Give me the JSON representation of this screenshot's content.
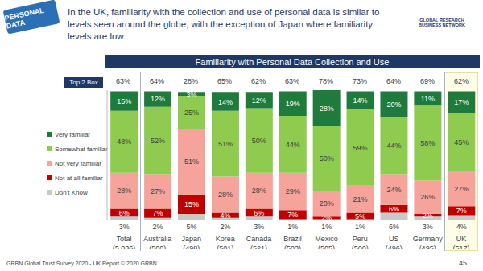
{
  "header": {
    "logo": "PERSONAL DATA",
    "title": "In the UK, familiarity with the collection and use of personal data is similar to levels seen around the globe, with the exception of Japan where familiarity levels are low.",
    "org": "GLOBAL RESEARCH BUSINESS NETWORK"
  },
  "footer": {
    "source": "GRBN Global Trust Survey 2020 - UK Report © 2020 GRBN",
    "page": "45"
  },
  "chart_data": {
    "type": "bar",
    "stacked": true,
    "data_labels": true,
    "tick_labels": "x",
    "legend": "left",
    "title": "Familiarity with Personal Data Collection and Use",
    "categories": [
      "Total",
      "Australia",
      "Japan",
      "Korea",
      "Canada",
      "Brazil",
      "Mexico",
      "Peru",
      "US",
      "Germany",
      "UK"
    ],
    "sample_sizes": [
      "(5,036)",
      "(500)",
      "(498)",
      "(501)",
      "(521)",
      "(503)",
      "(505)",
      "(500)",
      "(496)",
      "(495)",
      "(517)"
    ],
    "top2box": {
      "label": "Top 2 Box",
      "values": [
        63,
        64,
        28,
        65,
        62,
        63,
        78,
        73,
        64,
        69,
        62
      ],
      "value_labels": [
        "63%",
        "64%",
        "28%",
        "65%",
        "62%",
        "63%",
        "78%",
        "73%",
        "64%",
        "69%",
        "62%"
      ]
    },
    "ylim": [
      0,
      101
    ],
    "series": [
      {
        "name": "Very familiar",
        "color": "#1e7b3c",
        "values": [
          15,
          12,
          3,
          14,
          12,
          19,
          28,
          14,
          20,
          11,
          17
        ],
        "value_labels": [
          "15%",
          "12%",
          "3%",
          "14%",
          "12%",
          "19%",
          "28%",
          "14%",
          "20%",
          "11%",
          "17%"
        ]
      },
      {
        "name": "Somewhat familiar",
        "color": "#8fcb4f",
        "values": [
          48,
          52,
          25,
          51,
          50,
          44,
          50,
          59,
          44,
          58,
          45
        ],
        "value_labels": [
          "48%",
          "52%",
          "25%",
          "51%",
          "50%",
          "44%",
          "50%",
          "59%",
          "44%",
          "58%",
          "45%"
        ]
      },
      {
        "name": "Not very familiar",
        "color": "#f5a39b",
        "values": [
          28,
          27,
          51,
          28,
          28,
          29,
          20,
          21,
          24,
          26,
          27
        ],
        "value_labels": [
          "28%",
          "27%",
          "51%",
          "28%",
          "28%",
          "29%",
          "20%",
          "21%",
          "24%",
          "26%",
          "27%"
        ]
      },
      {
        "name": "Not at all familiar",
        "color": "#c00000",
        "values": [
          6,
          7,
          15,
          4,
          6,
          7,
          2,
          5,
          6,
          2,
          7
        ],
        "value_labels": [
          "6%",
          "7%",
          "15%",
          "4%",
          "6%",
          "7%",
          "2%",
          "5%",
          "6%",
          "2%",
          "7%"
        ]
      },
      {
        "name": "Don't Know",
        "color": "#c9c9c9",
        "values": [
          3,
          2,
          5,
          2,
          3,
          1,
          1,
          1,
          6,
          3,
          4
        ],
        "value_labels": [
          "3%",
          "2%",
          "5%",
          "2%",
          "3%",
          "1%",
          "1%",
          "1%",
          "6%",
          "3%",
          "4%"
        ]
      }
    ]
  }
}
